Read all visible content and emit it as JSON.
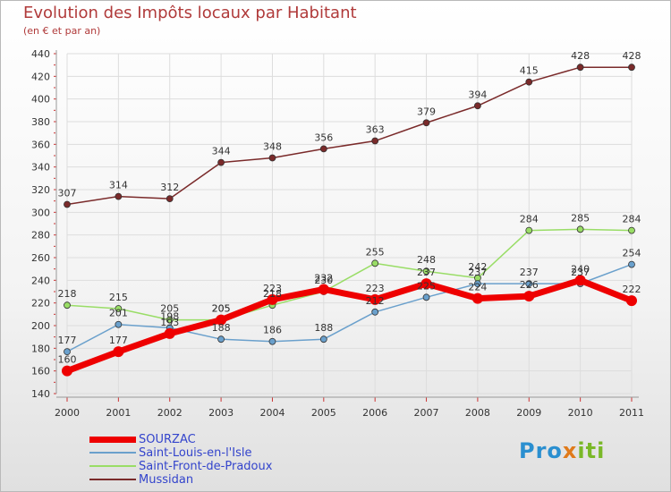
{
  "title": "Evolution des Impôts locaux par Habitant",
  "subtitle": "(en € et par an)",
  "logo": "Proxiti",
  "chart_data": {
    "type": "line",
    "title": "Evolution des Impôts locaux par Habitant",
    "subtitle": "(en € et par an)",
    "xlabel": "",
    "ylabel": "",
    "ylim": [
      140,
      440
    ],
    "ytick_step": 20,
    "grid": true,
    "categories": [
      "2000",
      "2001",
      "2002",
      "2003",
      "2004",
      "2005",
      "2006",
      "2007",
      "2008",
      "2009",
      "2010",
      "2011"
    ],
    "series": [
      {
        "name": "SOURZAC",
        "color": "#ee0000",
        "width": 7,
        "marker_r": 6,
        "values": [
          160,
          177,
          193,
          205,
          223,
          232,
          223,
          237,
          224,
          226,
          240,
          222
        ],
        "labels": [
          160,
          177,
          193,
          205,
          223,
          232,
          223,
          237,
          224,
          226,
          240,
          222
        ]
      },
      {
        "name": "Saint-Louis-en-l'Isle",
        "color": "#6aa0cc",
        "width": 1.5,
        "marker_r": 3.5,
        "values": [
          177,
          201,
          198,
          188,
          186,
          188,
          212,
          225,
          237,
          237,
          237,
          254
        ],
        "labels": [
          177,
          201,
          198,
          188,
          186,
          188,
          212,
          225,
          237,
          237,
          237,
          254
        ]
      },
      {
        "name": "Saint-Front-de-Pradoux",
        "color": "#99dd66",
        "width": 1.5,
        "marker_r": 3.5,
        "values": [
          218,
          215,
          205,
          205,
          218,
          230,
          255,
          248,
          242,
          284,
          285,
          284
        ],
        "labels": [
          218,
          215,
          205,
          205,
          218,
          230,
          255,
          248,
          242,
          284,
          285,
          284
        ]
      },
      {
        "name": "Mussidan",
        "color": "#7a2a2a",
        "width": 1.5,
        "marker_r": 3.5,
        "values": [
          307,
          314,
          312,
          344,
          348,
          356,
          363,
          379,
          394,
          415,
          428,
          428
        ],
        "labels": [
          307,
          314,
          312,
          344,
          348,
          356,
          363,
          379,
          394,
          415,
          428,
          428
        ]
      }
    ],
    "legend_position": "bottom-left"
  }
}
